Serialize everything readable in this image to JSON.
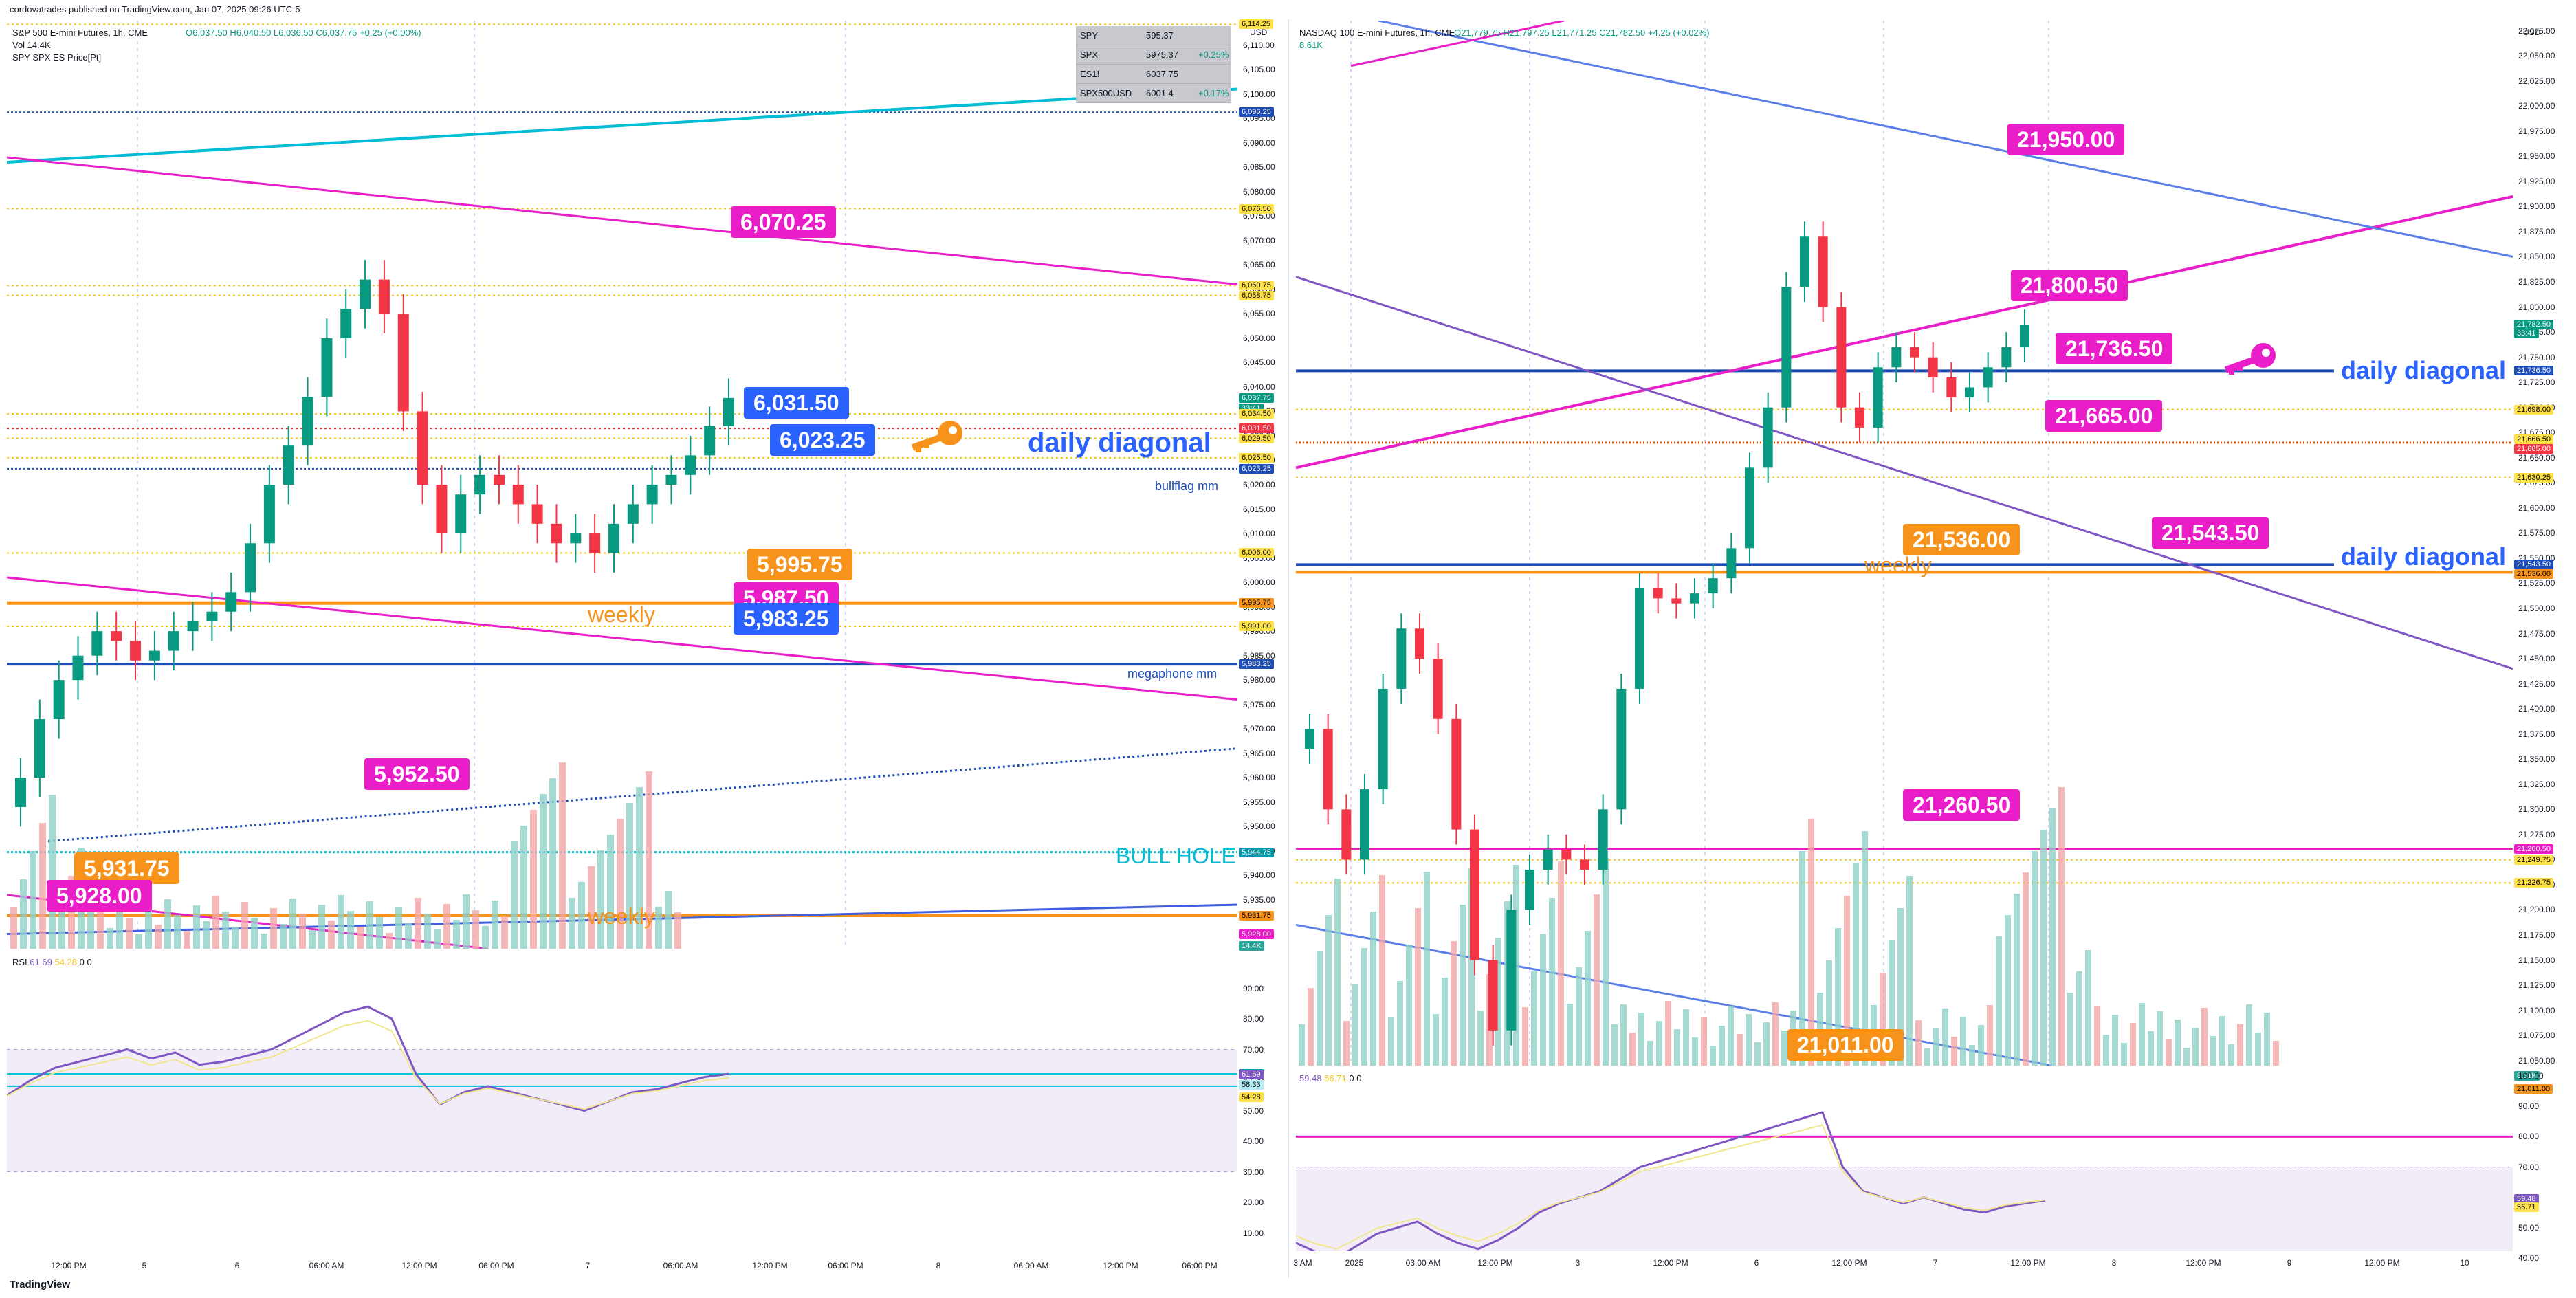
{
  "header": {
    "publisher": "cordovatrades published on TradingView.com, Jan 07, 2025 09:26 UTC-5"
  },
  "left_chart": {
    "symbol": "S&P 500 E-mini Futures, 1h, CME",
    "ohlc": "O6,037.50 H6,040.50 L6,036.50 C6,037.75 +0.25 (+0.00%)",
    "vol_label": "Vol  14.4K",
    "indicator_label": "SPY SPX ES Price[Pt]",
    "currency": "USD",
    "compare_table": [
      {
        "sym": "SPY",
        "price": "595.37",
        "chg": ""
      },
      {
        "sym": "SPX",
        "price": "5975.37",
        "chg": "+0.25%"
      },
      {
        "sym": "ES1!",
        "price": "6037.75",
        "chg": ""
      },
      {
        "sym": "SPX500USD",
        "price": "6001.4",
        "chg": "+0.17%"
      }
    ],
    "y_ticks": [
      "6,110.00",
      "6,105.00",
      "6,100.00",
      "6,095.00",
      "6,090.00",
      "6,085.00",
      "6,080.00",
      "6,075.00",
      "6,070.00",
      "6,065.00",
      "6,060.00",
      "6,055.00",
      "6,050.00",
      "6,045.00",
      "6,040.00",
      "6,035.00",
      "6,030.00",
      "6,025.00",
      "6,020.00",
      "6,015.00",
      "6,010.00",
      "6,005.00",
      "6,000.00",
      "5,995.00",
      "5,990.00",
      "5,985.00",
      "5,980.00",
      "5,975.00",
      "5,970.00",
      "5,965.00",
      "5,960.00",
      "5,955.00",
      "5,950.00",
      "5,945.00",
      "5,940.00",
      "5,935.00"
    ],
    "price_tags": [
      {
        "text": "6,114.25",
        "bg": "#fde047",
        "fg": "#000000",
        "price": 6114.25
      },
      {
        "text": "6,096.25",
        "bg": "#1e4db7",
        "fg": "#ffffff",
        "price": 6096.25
      },
      {
        "text": "6,076.50",
        "bg": "#fde047",
        "fg": "#000000",
        "price": 6076.5
      },
      {
        "text": "6,060.75",
        "bg": "#fde047",
        "fg": "#000000",
        "price": 6060.75
      },
      {
        "text": "6,058.75",
        "bg": "#fde047",
        "fg": "#000000",
        "price": 6058.75
      },
      {
        "text": "6,037.75",
        "bg": "#089981",
        "fg": "#ffffff",
        "price": 6037.75
      },
      {
        "text": "33:41",
        "bg": "#089981",
        "fg": "#ffffff",
        "price": 6035.6
      },
      {
        "text": "6,034.50",
        "bg": "#fde047",
        "fg": "#000000",
        "price": 6034.5
      },
      {
        "text": "6,031.50",
        "bg": "#f23645",
        "fg": "#ffffff",
        "price": 6031.5
      },
      {
        "text": "6,029.50",
        "bg": "#fde047",
        "fg": "#000000",
        "price": 6029.5
      },
      {
        "text": "6,025.50",
        "bg": "#fde047",
        "fg": "#000000",
        "price": 6025.5
      },
      {
        "text": "6,023.25",
        "bg": "#1e4db7",
        "fg": "#ffffff",
        "price": 6023.25
      },
      {
        "text": "6,006.00",
        "bg": "#fde047",
        "fg": "#000000",
        "price": 6006
      },
      {
        "text": "5,995.75",
        "bg": "#f7931a",
        "fg": "#000000",
        "price": 5995.75
      },
      {
        "text": "5,991.00",
        "bg": "#fde047",
        "fg": "#000000",
        "price": 5991
      },
      {
        "text": "5,983.25",
        "bg": "#1e4db7",
        "fg": "#ffffff",
        "price": 5983.25
      },
      {
        "text": "5,944.75",
        "bg": "#0097a7",
        "fg": "#ffffff",
        "price": 5944.75
      },
      {
        "text": "5,931.75",
        "bg": "#f7931a",
        "fg": "#000000",
        "price": 5931.75
      },
      {
        "text": "5,928.00",
        "bg": "#e91ec8",
        "fg": "#ffffff",
        "price": 5928
      },
      {
        "text": "14.4K",
        "bg": "#26a69a",
        "fg": "#ffffff",
        "price": 5925.5
      }
    ],
    "callouts": [
      {
        "text": "6,070.25",
        "bg": "#e91ec8"
      },
      {
        "text": "6,031.50",
        "bg": "#2962ff"
      },
      {
        "text": "6,023.25",
        "bg": "#2962ff"
      },
      {
        "text": "5,995.75",
        "bg": "#f7931a"
      },
      {
        "text": "5,987.50",
        "bg": "#e91ec8"
      },
      {
        "text": "5,983.25",
        "bg": "#2962ff"
      },
      {
        "text": "5,952.50",
        "bg": "#e91ec8"
      },
      {
        "text": "5,931.75",
        "bg": "#f7931a"
      },
      {
        "text": "5,928.00",
        "bg": "#e91ec8"
      }
    ],
    "labels": {
      "daily_diagonal": "daily diagonal",
      "bullflag": "bullflag mm",
      "weekly1": "weekly",
      "weekly2": "weekly",
      "megaphone": "megaphone mm",
      "bull_hole": "BULL HOLE"
    },
    "rsi": {
      "label": "RSI",
      "v1": "61.69",
      "v2": "54.28",
      "v3": "0",
      "v4": "0",
      "ticks": [
        "90.00",
        "80.00",
        "70.00",
        "60.00",
        "50.00",
        "40.00",
        "30.00",
        "20.00",
        "10.00"
      ],
      "tags": [
        {
          "text": "62.07",
          "bg": "#0097a7",
          "fg": "#ffffff",
          "val": 62.07
        },
        {
          "text": "61.69",
          "bg": "#7e57c2",
          "fg": "#ffffff",
          "val": 61.69
        },
        {
          "text": "58.33",
          "bg": "#b2ebf2",
          "fg": "#000000",
          "val": 58.33
        },
        {
          "text": "54.28",
          "bg": "#fde047",
          "fg": "#000000",
          "val": 54.28
        }
      ]
    },
    "x_ticks": [
      "12:00 PM",
      "5",
      "6",
      "06:00 AM",
      "12:00 PM",
      "06:00 PM",
      "7",
      "06:00 AM",
      "12:00 PM",
      "06:00 PM",
      "8",
      "06:00 AM",
      "12:00 PM",
      "06:00 PM"
    ]
  },
  "right_chart": {
    "symbol": "NASDAQ 100 E-mini Futures, 1h, CME",
    "ohlc": "O21,779.75 H21,797.25 L21,771.25 C21,782.50 +4.25 (+0.02%)",
    "vol_label": "8.61K",
    "currency": "USD",
    "y_ticks": [
      "22,075.00",
      "22,050.00",
      "22,025.00",
      "22,000.00",
      "21,975.00",
      "21,950.00",
      "21,925.00",
      "21,900.00",
      "21,875.00",
      "21,850.00",
      "21,825.00",
      "21,800.00",
      "21,775.00",
      "21,750.00",
      "21,725.00",
      "21,700.00",
      "21,675.00",
      "21,650.00",
      "21,625.00",
      "21,600.00",
      "21,575.00",
      "21,550.00",
      "21,525.00",
      "21,500.00",
      "21,475.00",
      "21,450.00",
      "21,425.00",
      "21,400.00",
      "21,375.00",
      "21,350.00",
      "21,325.00",
      "21,300.00",
      "21,275.00",
      "21,250.00",
      "21,225.00",
      "21,200.00",
      "21,175.00",
      "21,150.00",
      "21,125.00",
      "21,100.00",
      "21,075.00",
      "21,050.00"
    ],
    "price_tags": [
      {
        "text": "21,782.50",
        "bg": "#089981",
        "fg": "#ffffff",
        "price": 21782.5
      },
      {
        "text": "33:41",
        "bg": "#089981",
        "fg": "#ffffff",
        "price": 21773.5
      },
      {
        "text": "21,736.50",
        "bg": "#1e4db7",
        "fg": "#ffffff",
        "price": 21736.5
      },
      {
        "text": "21,698.00",
        "bg": "#fde047",
        "fg": "#000000",
        "price": 21698
      },
      {
        "text": "21,666.50",
        "bg": "#fde047",
        "fg": "#000000",
        "price": 21668.5
      },
      {
        "text": "21,665.00",
        "bg": "#f23645",
        "fg": "#ffffff",
        "price": 21659
      },
      {
        "text": "21,630.25",
        "bg": "#fde047",
        "fg": "#000000",
        "price": 21630.25
      },
      {
        "text": "21,543.50",
        "bg": "#1e4db7",
        "fg": "#ffffff",
        "price": 21543.5
      },
      {
        "text": "21,536.00",
        "bg": "#f7931a",
        "fg": "#000000",
        "price": 21534.5
      },
      {
        "text": "21,260.50",
        "bg": "#e91ec8",
        "fg": "#ffffff",
        "price": 21260.5
      },
      {
        "text": "21,249.75",
        "bg": "#fde047",
        "fg": "#000000",
        "price": 21249.75
      },
      {
        "text": "21,226.75",
        "bg": "#fde047",
        "fg": "#000000",
        "price": 21226.75
      },
      {
        "text": "8.61K",
        "bg": "#26a69a",
        "fg": "#ffffff",
        "price": 21035
      },
      {
        "text": "21,011.00",
        "bg": "#f7931a",
        "fg": "#000000",
        "price": 21022
      }
    ],
    "callouts": [
      {
        "text": "21,950.00",
        "bg": "#e91ec8"
      },
      {
        "text": "21,800.50",
        "bg": "#e91ec8"
      },
      {
        "text": "21,736.50",
        "bg": "#e91ec8"
      },
      {
        "text": "21,665.00",
        "bg": "#e91ec8"
      },
      {
        "text": "21,536.00",
        "bg": "#f7931a"
      },
      {
        "text": "21,543.50",
        "bg": "#e91ec8"
      },
      {
        "text": "21,260.50",
        "bg": "#e91ec8"
      },
      {
        "text": "21,011.00",
        "bg": "#f7931a"
      }
    ],
    "labels": {
      "daily_diagonal1": "daily diagonal",
      "daily_diagonal2": "daily diagonal",
      "weekly": "weekly"
    },
    "rsi": {
      "v1": "59.48",
      "v2": "56.71",
      "v3": "0",
      "v4": "0",
      "ticks": [
        "100.00",
        "90.00",
        "80.00",
        "70.00",
        "60.00",
        "50.00",
        "40.00"
      ],
      "tags": [
        {
          "text": "59.48",
          "bg": "#7e57c2",
          "fg": "#ffffff",
          "val": 59.48
        },
        {
          "text": "56.71",
          "bg": "#fde047",
          "fg": "#000000",
          "val": 56.71
        }
      ]
    },
    "x_ticks": [
      "3 AM",
      "2025",
      "03:00 AM",
      "12:00 PM",
      "3",
      "12:00 PM",
      "6",
      "12:00 PM",
      "7",
      "12:00 PM",
      "8",
      "12:00 PM",
      "9",
      "12:00 PM",
      "10"
    ]
  },
  "footer": {
    "brand": "TradingView"
  },
  "chart_data": [
    {
      "type": "line",
      "title": "S&P 500 E-mini Futures, 1h, CME",
      "ylim": [
        5925,
        6115
      ],
      "key_levels": [
        6114.25,
        6096.25,
        6076.5,
        6060.75,
        6058.75,
        6037.75,
        6034.5,
        6031.5,
        6029.5,
        6025.5,
        6023.25,
        6006,
        5995.75,
        5991,
        5983.25,
        5944.75,
        5931.75,
        5928
      ],
      "series": [
        {
          "values": [
            5960,
            5972,
            5980,
            5985,
            5990,
            5988,
            5984,
            5986,
            5990,
            5992,
            5994,
            5998,
            6008,
            6020,
            6028,
            6038,
            6050,
            6056,
            6062,
            6055,
            6035,
            6020,
            6010,
            6018,
            6022,
            6020,
            6016,
            6012,
            6008,
            6010,
            6006,
            6012,
            6016,
            6020,
            6022,
            6026,
            6032,
            6037.75
          ]
        }
      ]
    },
    {
      "type": "line",
      "title": "NASDAQ 100 E-mini Futures, 1h, CME",
      "ylim": [
        21050,
        22075
      ],
      "key_levels": [
        21950,
        21800.5,
        21782.5,
        21736.5,
        21698,
        21665,
        21630.25,
        21543.5,
        21536,
        21260.5,
        21249.75,
        21226.75,
        21011
      ],
      "series": [
        {
          "values": [
            21380,
            21300,
            21250,
            21320,
            21420,
            21480,
            21450,
            21390,
            21280,
            21150,
            21080,
            21200,
            21240,
            21260,
            21250,
            21240,
            21300,
            21420,
            21520,
            21510,
            21505,
            21515,
            21530,
            21560,
            21640,
            21700,
            21820,
            21870,
            21800,
            21700,
            21680,
            21740,
            21760,
            21750,
            21730,
            21710,
            21720,
            21740,
            21760,
            21782.5
          ]
        }
      ]
    }
  ]
}
